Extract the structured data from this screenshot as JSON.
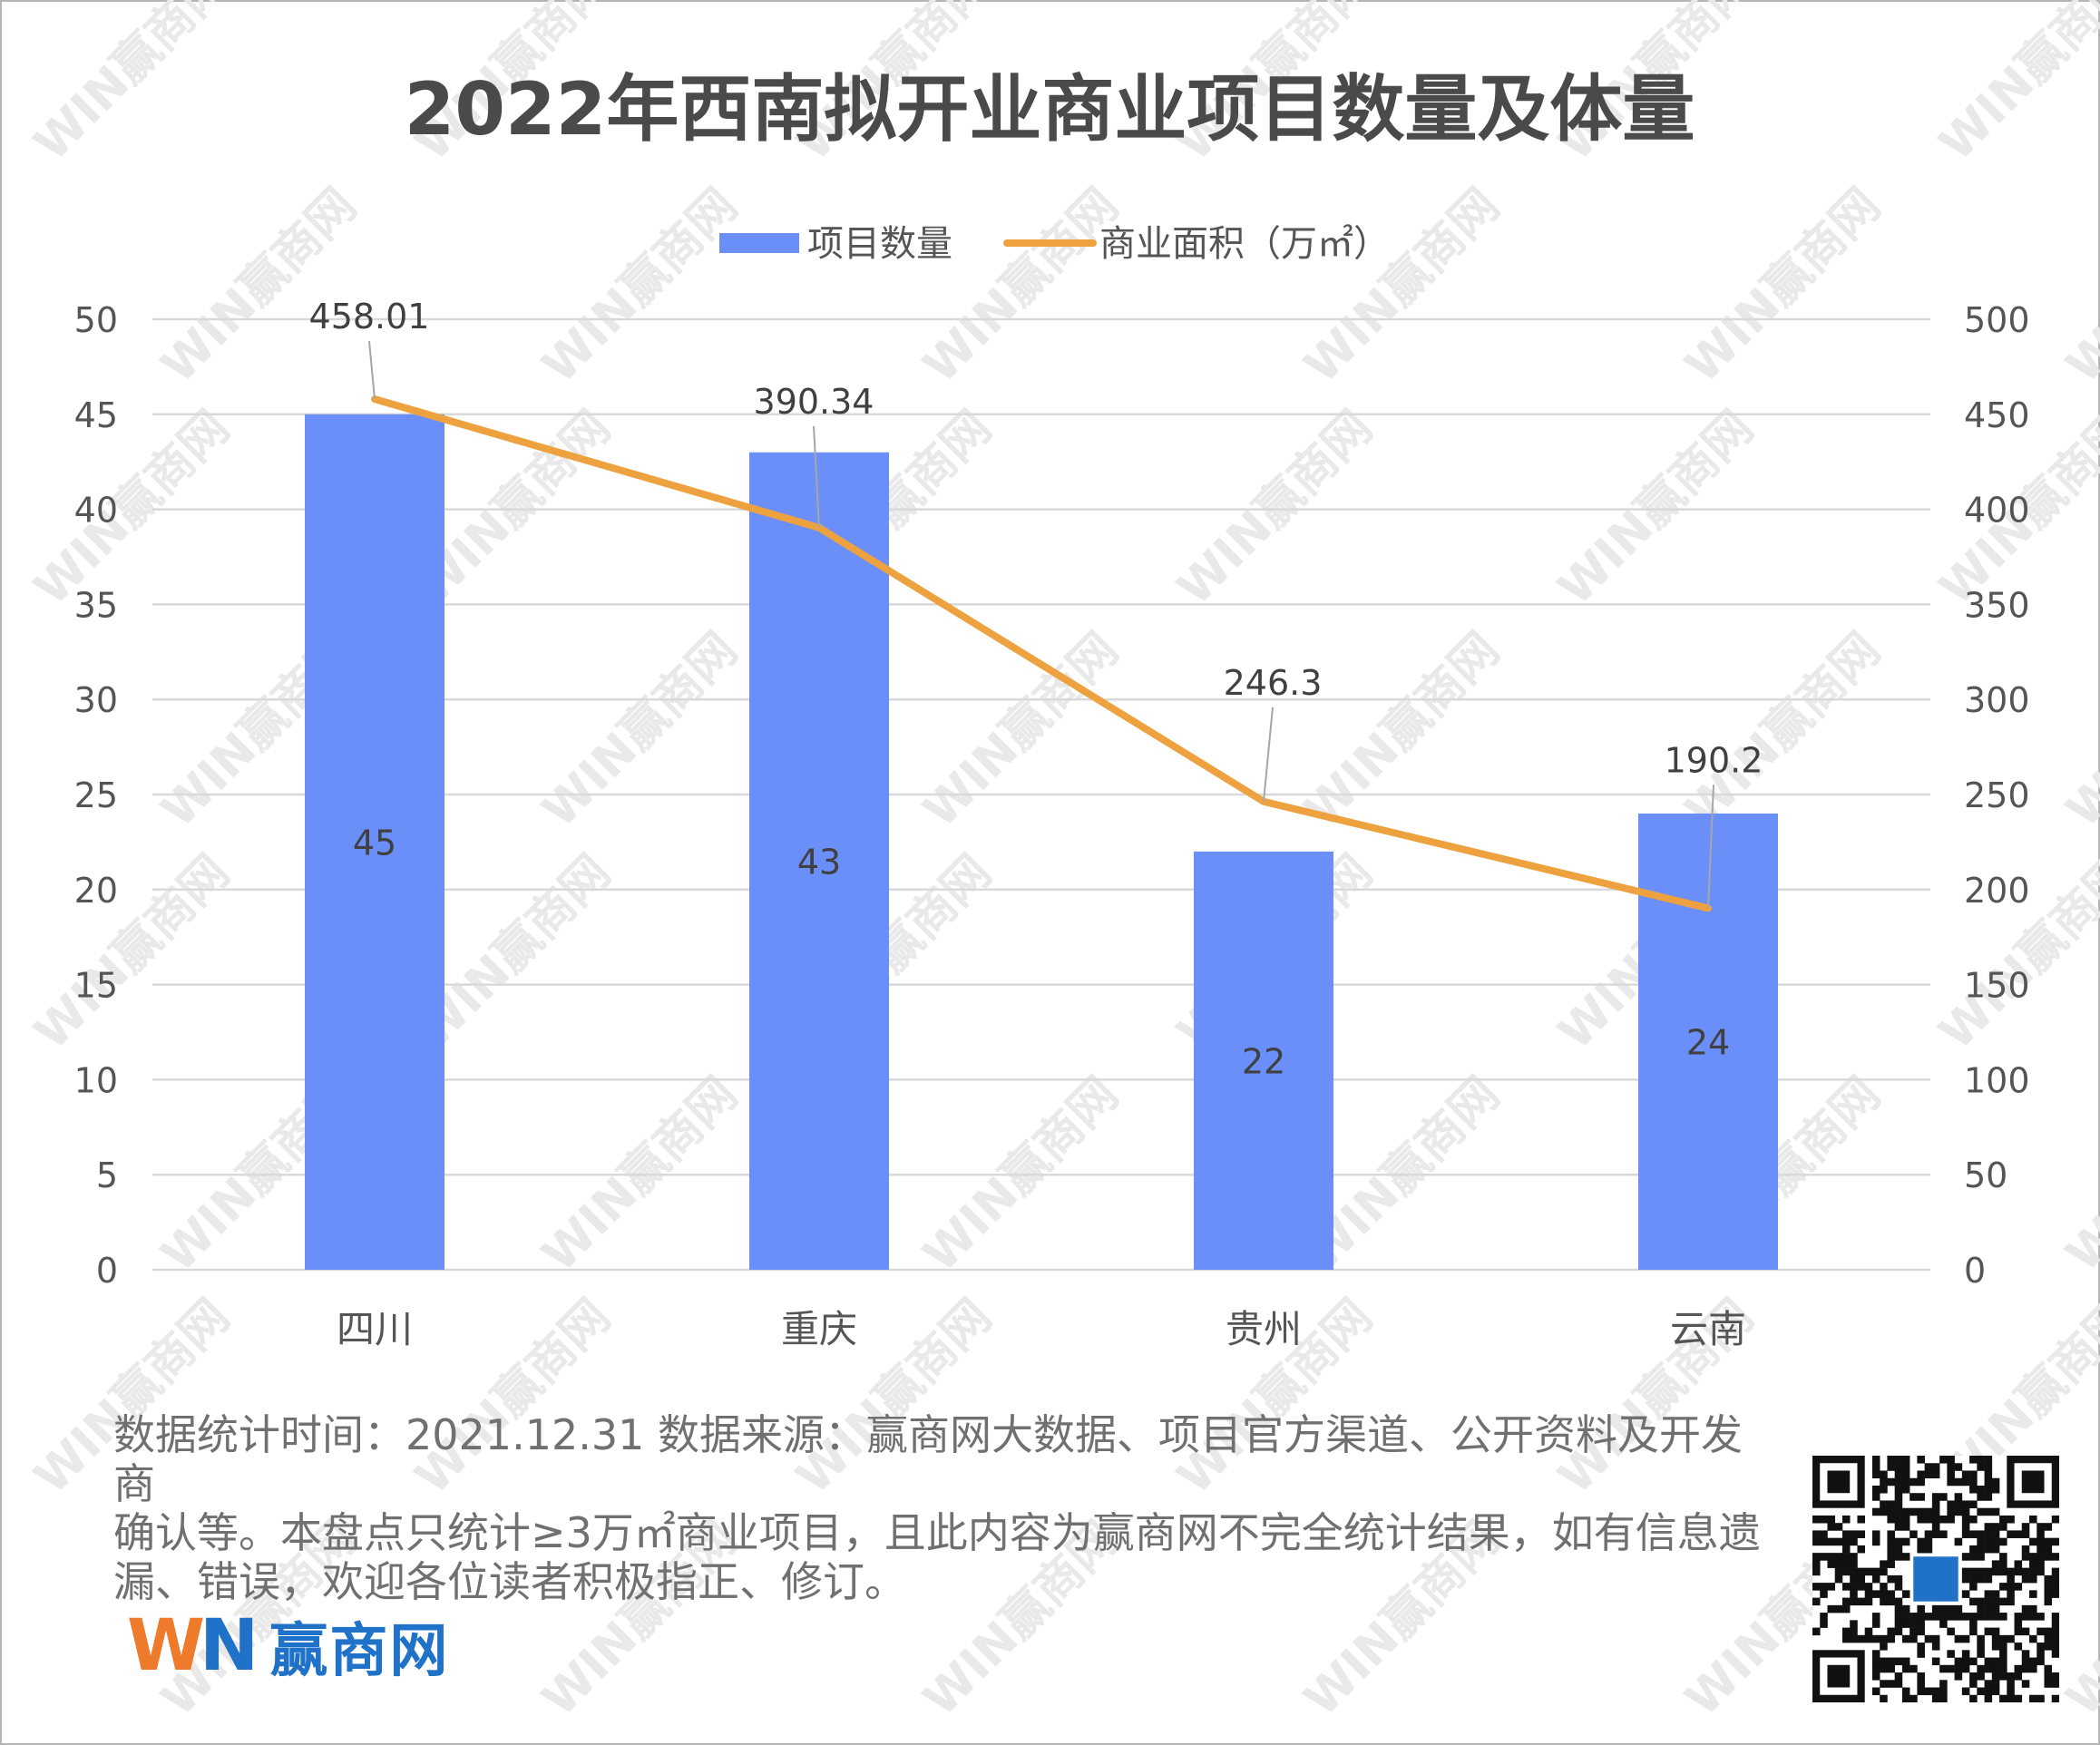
{
  "chart_data": {
    "type": "bar+line",
    "title": "2022年西南拟开业商业项目数量及体量",
    "categories": [
      "四川",
      "重庆",
      "贵州",
      "云南"
    ],
    "series": [
      {
        "name": "项目数量",
        "type": "bar",
        "axis": "left",
        "color": "#6b8ff8",
        "values": [
          45,
          43,
          22,
          24
        ],
        "data_labels": [
          "45",
          "43",
          "22",
          "24"
        ]
      },
      {
        "name": "商业面积（万㎡）",
        "type": "line",
        "axis": "right",
        "color": "#eda23f",
        "values": [
          458.01,
          390.34,
          246.3,
          190.2
        ],
        "data_labels": [
          "458.01",
          "390.34",
          "246.3",
          "190.2"
        ]
      }
    ],
    "y_left": {
      "min": 0,
      "max": 50,
      "ticks": [
        "0",
        "5",
        "10",
        "15",
        "20",
        "25",
        "30",
        "35",
        "40",
        "45",
        "50"
      ]
    },
    "y_right": {
      "min": 0,
      "max": 500,
      "ticks": [
        "0",
        "50",
        "100",
        "150",
        "200",
        "250",
        "300",
        "350",
        "400",
        "450",
        "500"
      ]
    },
    "grid": true,
    "legend": "top-center"
  },
  "footnote": {
    "lines": [
      "数据统计时间：2021.12.31  数据来源：赢商网大数据、项目官方渠道、公开资料及开发商",
      "确认等。本盘点只统计≥3万㎡商业项目，且此内容为赢商网不完全统计结果，如有信息遗",
      "漏、错误，欢迎各位读者积极指正、修订。"
    ]
  },
  "logo": {
    "mark_w": "W",
    "mark_n": "N",
    "text": "赢商网"
  },
  "watermark": {
    "text": "WIN赢商网"
  },
  "icons": {
    "qr": "qr-code-icon"
  }
}
